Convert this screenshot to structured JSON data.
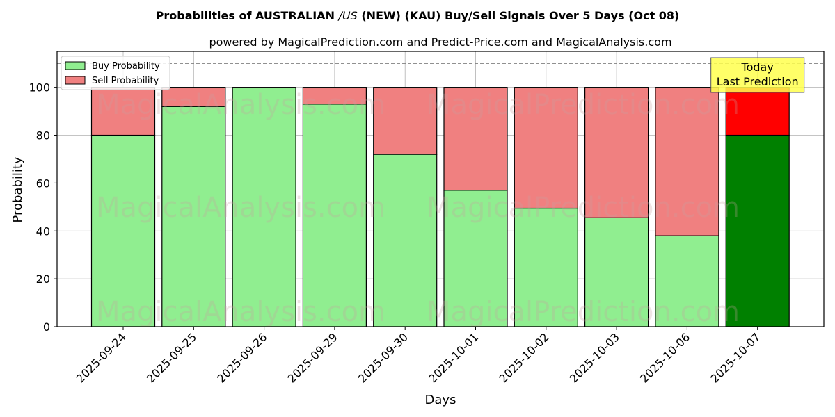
{
  "chart_data": {
    "type": "bar",
    "stacked": true,
    "title_prefix": "Probabilities of AUSTRALIAN ",
    "title_italic": "/US",
    "title_suffix": " (NEW) (KAU) Buy/Sell Signals Over 5 Days (Oct 08)",
    "subtitle": "powered by MagicalPrediction.com and Predict-Price.com and MagicalAnalysis.com",
    "xlabel": "Days",
    "ylabel": "Probability",
    "ylim": [
      0,
      115
    ],
    "yticks": [
      0,
      20,
      40,
      60,
      80,
      100
    ],
    "grid": true,
    "reference_line": 110,
    "categories": [
      "2025-09-24",
      "2025-09-25",
      "2025-09-26",
      "2025-09-29",
      "2025-09-30",
      "2025-10-01",
      "2025-10-02",
      "2025-10-03",
      "2025-10-06",
      "2025-10-07"
    ],
    "series": [
      {
        "name": "Buy Probability",
        "values": [
          80,
          92,
          100,
          93,
          72,
          57,
          49.5,
          45.5,
          38,
          80
        ]
      },
      {
        "name": "Sell Probability",
        "values": [
          20,
          8,
          0,
          7,
          28,
          43,
          50.5,
          54.5,
          62,
          20
        ]
      }
    ],
    "legend": {
      "placement": "top-left",
      "items": [
        "Buy Probability",
        "Sell Probability"
      ]
    },
    "colors": {
      "buy": "#90ee90",
      "sell": "#f08080",
      "buy_last": "#008000",
      "sell_last": "#ff0000",
      "annotation_bg": "#ffff4d"
    },
    "annotation": {
      "lines": [
        "Today",
        "Last Prediction"
      ]
    },
    "watermarks": [
      "MagicalAnalysis.com",
      "MagicalPrediction.com"
    ]
  }
}
